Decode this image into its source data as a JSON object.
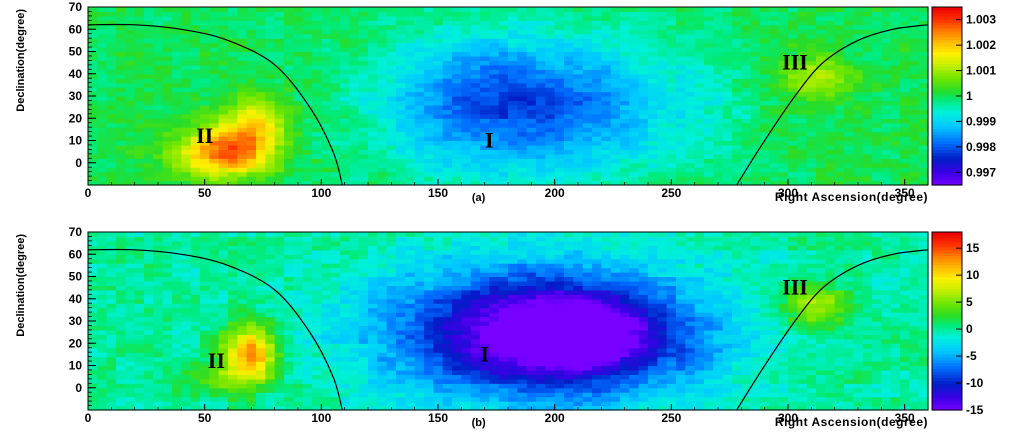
{
  "chart_data": [
    {
      "type": "heatmap",
      "panel_label": "(a)",
      "xlabel": "Right Ascension(degree)",
      "ylabel": "Declination(degree)",
      "xlim": [
        0,
        360
      ],
      "ylim": [
        -10,
        70
      ],
      "xticks": [
        "0",
        "50",
        "100",
        "150",
        "200",
        "250",
        "300",
        "350"
      ],
      "yticks": [
        "0",
        "10",
        "20",
        "30",
        "40",
        "50",
        "60",
        "70"
      ],
      "colorbar": {
        "range": [
          0.9965,
          1.0035
        ],
        "ticks": [
          "1.003",
          "1.002",
          "1.001",
          "1",
          "0.999",
          "0.998",
          "0.997"
        ]
      },
      "regions": [
        {
          "label": "I",
          "ra": 172,
          "dec": 10
        },
        {
          "label": "II",
          "ra": 50,
          "dec": 12
        },
        {
          "label": "III",
          "ra": 303,
          "dec": 45
        }
      ],
      "features": [
        {
          "kind": "deficit",
          "ra": 195,
          "dec": 25,
          "sigma_ra": 45,
          "sigma_dec": 22,
          "amplitude": -0.0018
        },
        {
          "kind": "deficit",
          "ra": 165,
          "dec": 30,
          "sigma_ra": 25,
          "sigma_dec": 20,
          "amplitude": -0.0006
        },
        {
          "kind": "excess",
          "ra": 58,
          "dec": 5,
          "sigma_ra": 14,
          "sigma_dec": 8,
          "amplitude": 0.0026
        },
        {
          "kind": "excess",
          "ra": 72,
          "dec": 18,
          "sigma_ra": 9,
          "sigma_dec": 10,
          "amplitude": 0.0016
        },
        {
          "kind": "excess",
          "ra": 312,
          "dec": 38,
          "sigma_ra": 12,
          "sigma_dec": 8,
          "amplitude": 0.0011
        }
      ],
      "curves": [
        {
          "name": "left-arc",
          "points": [
            [
              0,
              62
            ],
            [
              20,
              62
            ],
            [
              40,
              60
            ],
            [
              60,
              55
            ],
            [
              80,
              44
            ],
            [
              95,
              25
            ],
            [
              105,
              5
            ],
            [
              109,
              -10
            ]
          ]
        },
        {
          "name": "right-arc",
          "points": [
            [
              278,
              -10
            ],
            [
              290,
              10
            ],
            [
              303,
              30
            ],
            [
              315,
              45
            ],
            [
              330,
              55
            ],
            [
              345,
              60
            ],
            [
              360,
              62
            ]
          ]
        }
      ]
    },
    {
      "type": "heatmap",
      "panel_label": "(b)",
      "xlabel": "Right Ascension(degree)",
      "ylabel": "Declination(degree)",
      "xlim": [
        0,
        360
      ],
      "ylim": [
        -10,
        70
      ],
      "xticks": [
        "0",
        "50",
        "100",
        "150",
        "200",
        "250",
        "300",
        "350"
      ],
      "yticks": [
        "0",
        "10",
        "20",
        "30",
        "40",
        "50",
        "60",
        "70"
      ],
      "colorbar": {
        "range": [
          -15,
          18
        ],
        "ticks": [
          "15",
          "10",
          "5",
          "0",
          "-5",
          "-10",
          "-15"
        ]
      },
      "regions": [
        {
          "label": "I",
          "ra": 170,
          "dec": 15
        },
        {
          "label": "II",
          "ra": 55,
          "dec": 12
        },
        {
          "label": "III",
          "ra": 303,
          "dec": 45
        }
      ],
      "features": [
        {
          "kind": "deficit",
          "ra": 195,
          "dec": 25,
          "sigma_ra": 45,
          "sigma_dec": 20,
          "amplitude": -17
        },
        {
          "kind": "deficit",
          "ra": 215,
          "dec": 22,
          "sigma_ra": 25,
          "sigma_dec": 12,
          "amplitude": -4
        },
        {
          "kind": "excess",
          "ra": 70,
          "dec": 17,
          "sigma_ra": 8,
          "sigma_dec": 8,
          "amplitude": 13
        },
        {
          "kind": "excess",
          "ra": 62,
          "dec": 5,
          "sigma_ra": 12,
          "sigma_dec": 6,
          "amplitude": 5
        },
        {
          "kind": "excess",
          "ra": 312,
          "dec": 37,
          "sigma_ra": 10,
          "sigma_dec": 7,
          "amplitude": 7
        }
      ],
      "curves": [
        {
          "name": "left-arc",
          "points": [
            [
              0,
              62
            ],
            [
              20,
              62
            ],
            [
              40,
              60
            ],
            [
              60,
              55
            ],
            [
              80,
              44
            ],
            [
              95,
              25
            ],
            [
              105,
              5
            ],
            [
              109,
              -10
            ]
          ]
        },
        {
          "name": "right-arc",
          "points": [
            [
              278,
              -10
            ],
            [
              290,
              10
            ],
            [
              303,
              30
            ],
            [
              315,
              45
            ],
            [
              330,
              55
            ],
            [
              345,
              60
            ],
            [
              360,
              62
            ]
          ]
        }
      ]
    }
  ]
}
